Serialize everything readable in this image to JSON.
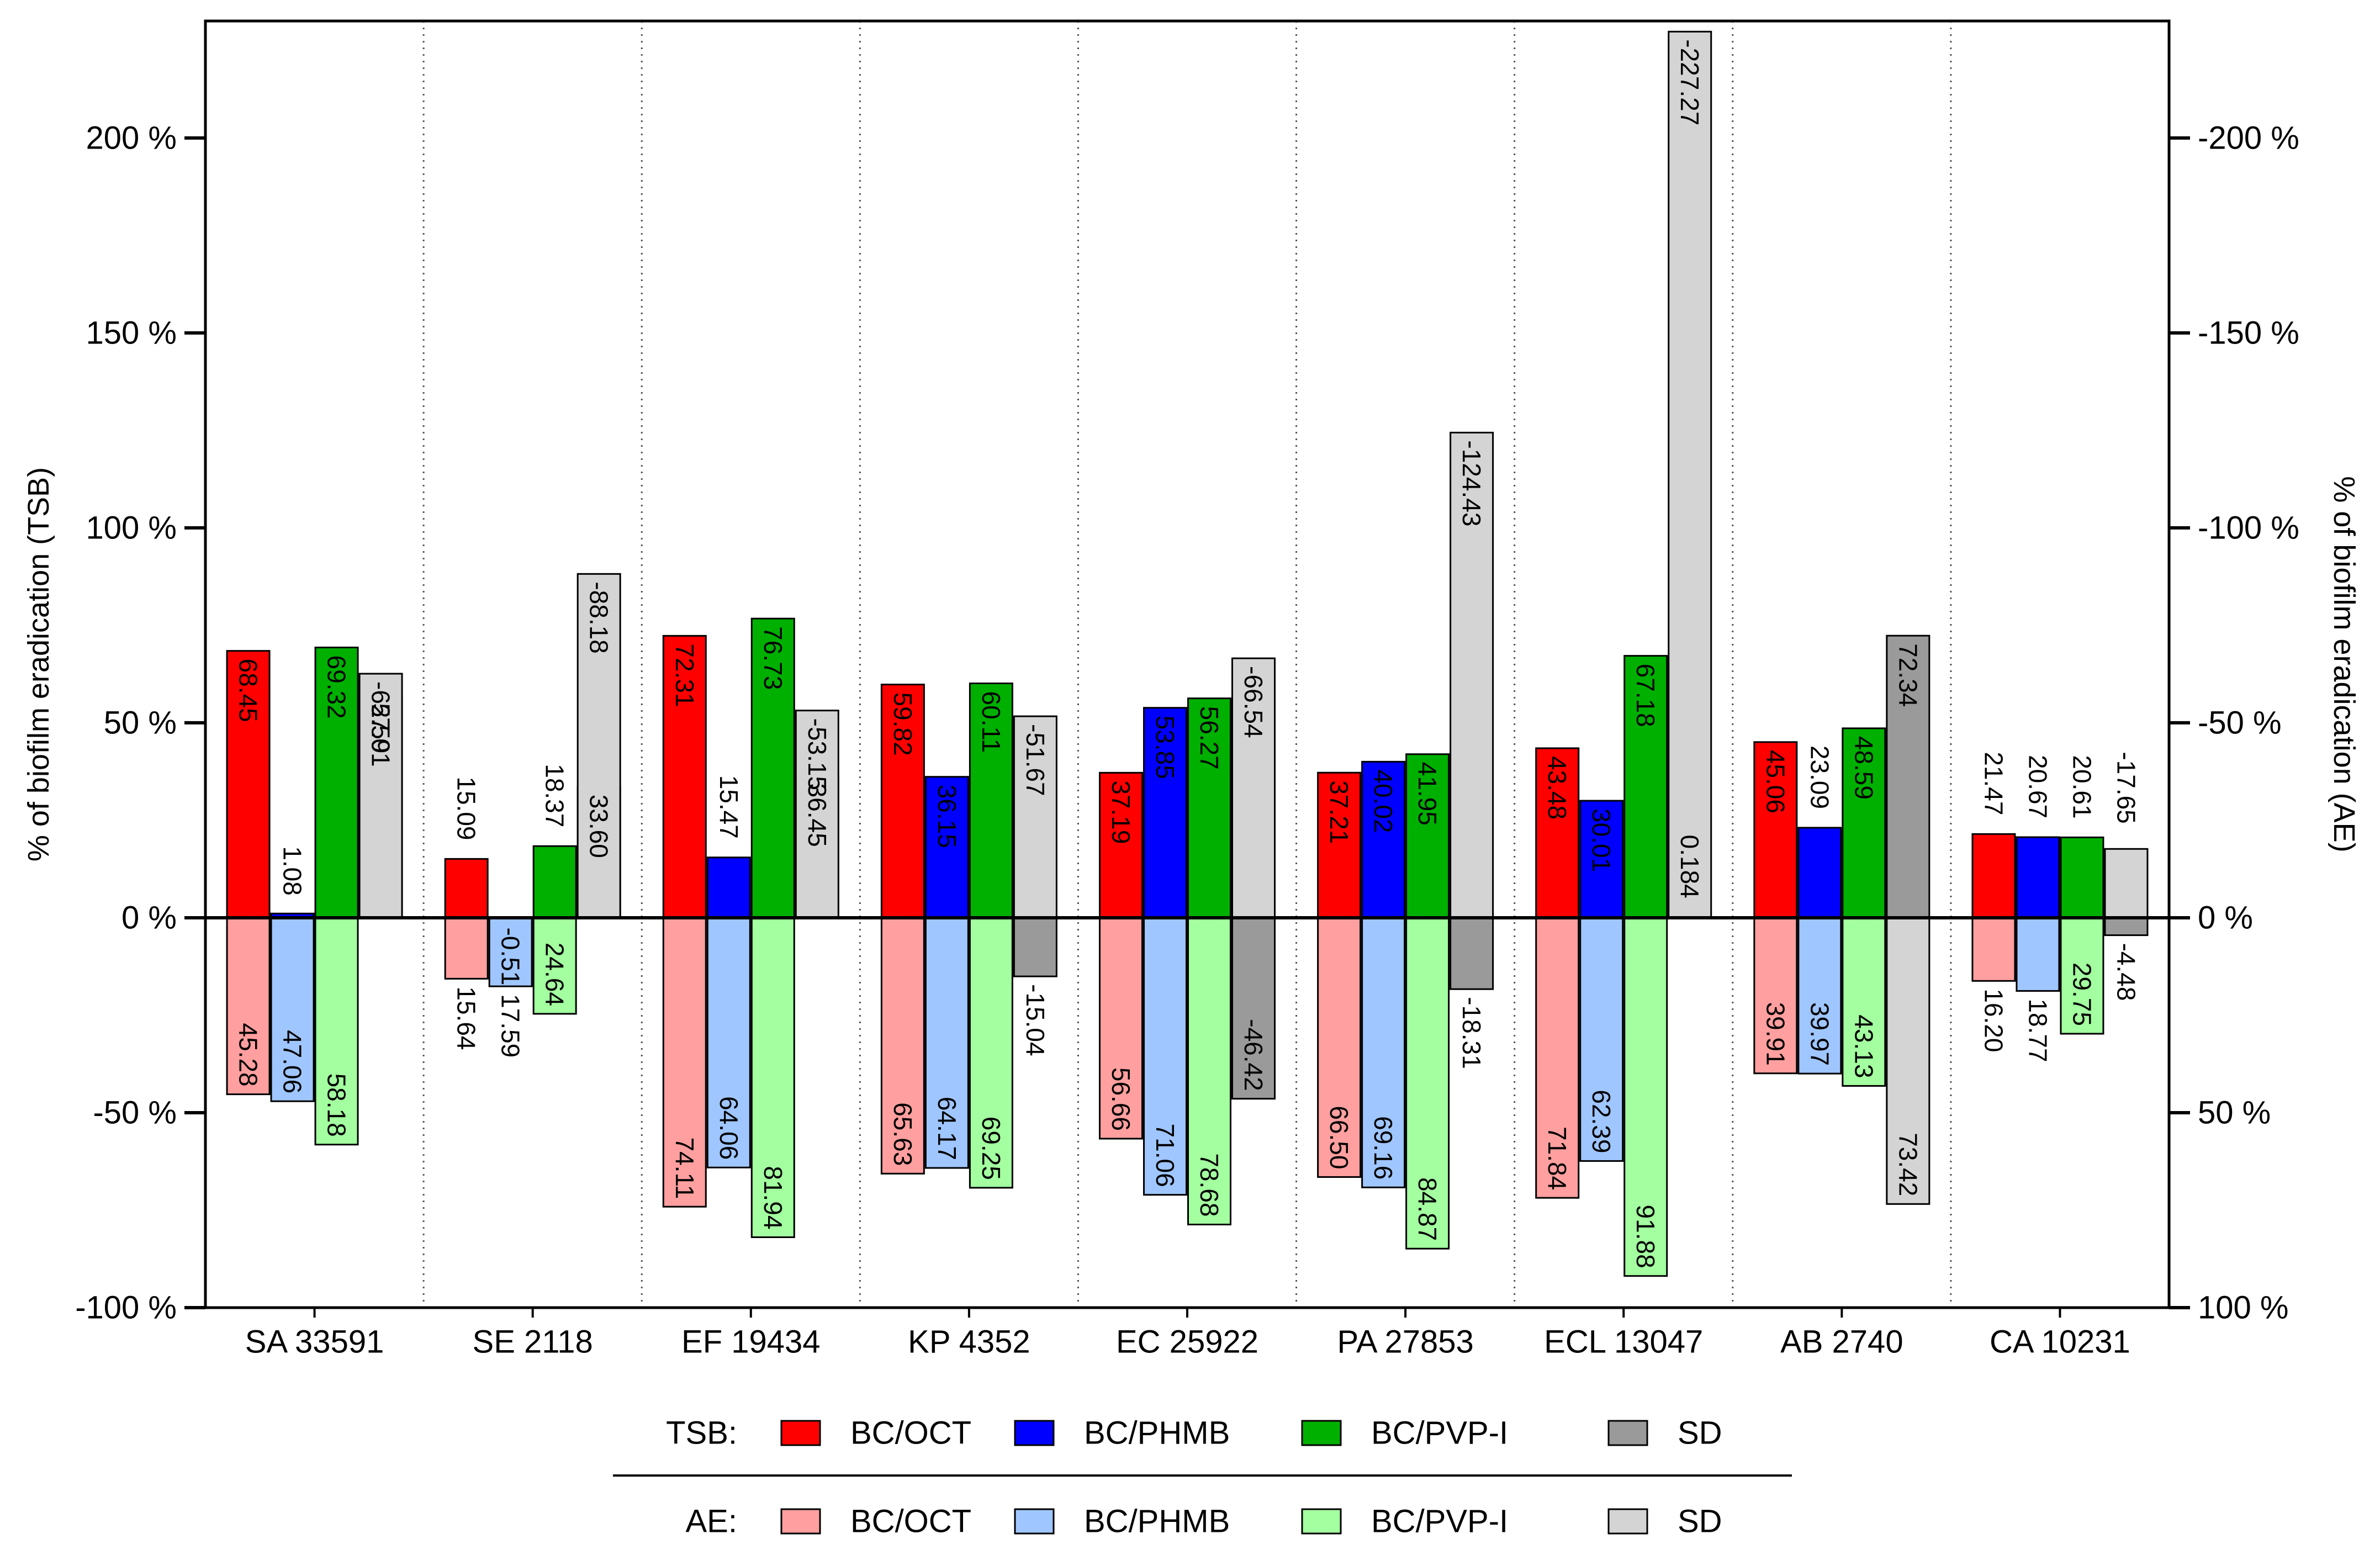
{
  "chart_data": {
    "type": "bar",
    "title": "",
    "categories": [
      "SA 33591",
      "SE 2118",
      "EF 19434",
      "KP 4352",
      "EC 25922",
      "PA 27853",
      "ECL 13047",
      "AB 2740",
      "CA 10231"
    ],
    "ylabel_left": "% of biofilm eradication (TSB)",
    "ylabel_right": "% of biofilm eradication  (AE)",
    "ylim": [
      -100,
      230
    ],
    "left_ticks": [
      {
        "value": 200,
        "label": "200 %"
      },
      {
        "value": 150,
        "label": "150 %"
      },
      {
        "value": 100,
        "label": "100 %"
      },
      {
        "value": 50,
        "label": "50 %"
      },
      {
        "value": 0,
        "label": "0 %"
      },
      {
        "value": -50,
        "label": "-50 %"
      },
      {
        "value": -100,
        "label": "-100 %"
      }
    ],
    "right_ticks": [
      {
        "value": 200,
        "label": "-200 %"
      },
      {
        "value": 150,
        "label": "-150 %"
      },
      {
        "value": 100,
        "label": "-100 %"
      },
      {
        "value": 50,
        "label": "-50 %"
      },
      {
        "value": 0,
        "label": "0 %"
      },
      {
        "value": -50,
        "label": "50 %"
      },
      {
        "value": -100,
        "label": "100 %"
      }
    ],
    "series": [
      {
        "name": "BC/OCT",
        "group": "TSB",
        "color": "#ff0000",
        "stack_index": 0,
        "values": [
          68.45,
          15.09,
          72.31,
          59.82,
          37.19,
          37.21,
          43.48,
          45.06,
          21.47
        ],
        "labels": [
          "68.45",
          "15.09",
          "72.31",
          "59.82",
          "37.19",
          "37.21",
          "43.48",
          "45.06",
          "21.47"
        ]
      },
      {
        "name": "BC/PHMB",
        "group": "TSB",
        "color": "#0000ff",
        "stack_index": 1,
        "values": [
          1.08,
          -0.51,
          15.47,
          36.15,
          53.85,
          40.02,
          30.01,
          23.09,
          20.67
        ],
        "labels": [
          "1.08",
          "-0.51",
          "15.47",
          "36.15",
          "53.85",
          "40.02",
          "30.01",
          "23.09",
          "20.67"
        ]
      },
      {
        "name": "BC/PVP-I",
        "group": "TSB",
        "color": "#00b000",
        "stack_index": 2,
        "values": [
          69.32,
          18.37,
          76.73,
          60.11,
          56.27,
          41.95,
          67.18,
          48.59,
          20.61
        ],
        "labels": [
          "69.32",
          "18.37",
          "76.73",
          "60.11",
          "56.27",
          "41.95",
          "67.18",
          "48.59",
          "20.61"
        ]
      },
      {
        "name": "SD",
        "group": "TSB",
        "color": "#9a9a9a",
        "stack_index": 3,
        "values": [
          57.01,
          33.6,
          36.45,
          -15.04,
          -46.42,
          -18.31,
          0.184,
          72.34,
          -4.48
        ],
        "labels": [
          "57.01",
          "33.60",
          "36.45",
          "-15.04",
          "-46.42",
          "-18.31",
          "0.184",
          "72.34",
          "-4.48"
        ]
      },
      {
        "name": "BC/OCT",
        "group": "AE",
        "color": "#ff9f9f",
        "stack_index": 0,
        "values": [
          -45.28,
          -15.64,
          -74.11,
          -65.63,
          -56.66,
          -66.5,
          -71.84,
          -39.91,
          -16.2
        ],
        "labels": [
          "45.28",
          "15.64",
          "74.11",
          "65.63",
          "56.66",
          "66.50",
          "71.84",
          "39.91",
          "16.20"
        ]
      },
      {
        "name": "BC/PHMB",
        "group": "AE",
        "color": "#9fc6ff",
        "stack_index": 1,
        "values": [
          -47.06,
          -17.59,
          -64.06,
          -64.17,
          -71.06,
          -69.16,
          -62.39,
          -39.97,
          -18.77
        ],
        "labels": [
          "47.06",
          "17.59",
          "64.06",
          "64.17",
          "71.06",
          "69.16",
          "62.39",
          "39.97",
          "18.77"
        ]
      },
      {
        "name": "BC/PVP-I",
        "group": "AE",
        "color": "#a3ff9f",
        "stack_index": 2,
        "values": [
          -58.18,
          -24.64,
          -81.94,
          -69.25,
          -78.68,
          -84.87,
          -91.88,
          -43.13,
          -29.75
        ],
        "labels": [
          "58.18",
          "24.64",
          "81.94",
          "69.25",
          "78.68",
          "84.87",
          "91.88",
          "43.13",
          "29.75"
        ]
      },
      {
        "name": "SD",
        "group": "AE",
        "color": "#d4d4d4",
        "stack_index": 3,
        "values": [
          62.59,
          88.18,
          53.15,
          51.67,
          66.54,
          124.43,
          227.27,
          -73.42,
          17.65
        ],
        "labels": [
          "-62.59",
          "-88.18",
          "-53.15",
          "-51.67",
          "-66.54",
          "-124.43",
          "-227.27",
          "73.42",
          "-17.65"
        ]
      }
    ],
    "legend": {
      "placement": "bottom",
      "rows": [
        {
          "label": "TSB:",
          "items": [
            {
              "name": "BC/OCT",
              "color": "#ff0000"
            },
            {
              "name": "BC/PHMB",
              "color": "#0000ff"
            },
            {
              "name": "BC/PVP-I",
              "color": "#00b000"
            },
            {
              "name": "SD",
              "color": "#9a9a9a"
            }
          ]
        },
        {
          "label": "AE:",
          "items": [
            {
              "name": "BC/OCT",
              "color": "#ff9f9f"
            },
            {
              "name": "BC/PHMB",
              "color": "#9fc6ff"
            },
            {
              "name": "BC/PVP-I",
              "color": "#a3ff9f"
            },
            {
              "name": "SD",
              "color": "#d4d4d4"
            }
          ]
        }
      ]
    },
    "grid": false,
    "category_separators": "dotted"
  }
}
